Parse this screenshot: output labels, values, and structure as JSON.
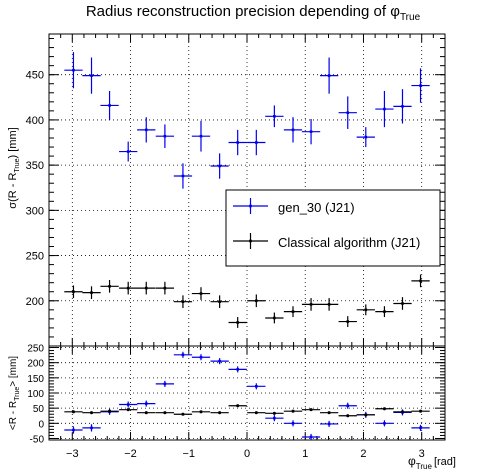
{
  "chart_data": [
    {
      "type": "scatter",
      "panel": "top",
      "title": "Radius reconstruction precision depending of",
      "title_symbol": "φ",
      "title_sub": "True",
      "ylabel": "σ(R - R",
      "ylabel_sub": "True",
      "ylabel_end": ") [mm]",
      "xlim": [
        -3.4,
        3.4
      ],
      "ylim": [
        150,
        495
      ],
      "yticks": [
        200,
        250,
        300,
        350,
        400,
        450
      ],
      "grid": true,
      "legend_position": "center-right",
      "series": [
        {
          "name": "gen_30 (J21)",
          "color": "#0000ee",
          "xerr": 0.1571,
          "x": [
            -2.98,
            -2.67,
            -2.36,
            -2.04,
            -1.73,
            -1.41,
            -1.1,
            -0.79,
            -0.47,
            -0.16,
            0.16,
            0.47,
            0.79,
            1.1,
            1.41,
            1.73,
            2.04,
            2.36,
            2.67,
            2.98
          ],
          "y": [
            455,
            449,
            416,
            365,
            389,
            382,
            338,
            382,
            349,
            375,
            375,
            404,
            389,
            387,
            449,
            408,
            381,
            412,
            415,
            438
          ],
          "yerr": [
            20,
            20,
            16,
            11,
            14,
            13,
            14,
            17,
            14,
            14,
            14,
            12,
            14,
            14,
            20,
            18,
            11,
            20,
            19,
            19
          ]
        },
        {
          "name": "Classical algorithm (J21)",
          "color": "#000000",
          "xerr": 0.1571,
          "x": [
            -2.98,
            -2.67,
            -2.36,
            -2.04,
            -1.73,
            -1.41,
            -1.1,
            -0.79,
            -0.47,
            -0.16,
            0.16,
            0.47,
            0.79,
            1.1,
            1.41,
            1.73,
            2.04,
            2.36,
            2.67,
            2.98
          ],
          "y": [
            210,
            209,
            216,
            214,
            214,
            214,
            199,
            208,
            199,
            176,
            200,
            181,
            188,
            196,
            196,
            177,
            190,
            188,
            197,
            222
          ],
          "yerr": [
            7,
            7,
            7,
            7,
            7,
            7,
            7,
            7,
            7,
            6,
            7,
            6,
            6,
            7,
            7,
            6,
            6,
            6,
            7,
            7
          ]
        }
      ]
    },
    {
      "type": "scatter",
      "panel": "bottom",
      "xlabel": "φ",
      "xlabel_sub": "True",
      "xlabel_unit": "[rad]",
      "ylabel": "<R - R",
      "ylabel_sub": "True",
      "ylabel_end": "> [mm]",
      "xlim": [
        -3.4,
        3.4
      ],
      "ylim": [
        -55,
        255
      ],
      "xticks": [
        -3,
        -2,
        -1,
        0,
        1,
        2,
        3
      ],
      "yticks": [
        -50,
        0,
        50,
        100,
        150,
        200,
        250
      ],
      "grid": true,
      "series": [
        {
          "name": "gen_30 (J21)",
          "color": "#0000ee",
          "xerr": 0.1571,
          "x": [
            -2.98,
            -2.67,
            -2.36,
            -2.04,
            -1.73,
            -1.41,
            -1.1,
            -0.79,
            -0.47,
            -0.16,
            0.16,
            0.47,
            0.79,
            1.1,
            1.41,
            1.73,
            2.04,
            2.36,
            2.67,
            2.98
          ],
          "y": [
            -22,
            -15,
            38,
            62,
            65,
            130,
            226,
            218,
            205,
            178,
            122,
            17,
            0,
            -45,
            -2,
            58,
            28,
            0,
            36,
            -15
          ],
          "yerr": [
            12,
            12,
            10,
            10,
            10,
            10,
            10,
            10,
            10,
            10,
            10,
            10,
            10,
            10,
            10,
            10,
            10,
            10,
            10,
            10
          ]
        },
        {
          "name": "Classical algorithm (J21)",
          "color": "#000000",
          "xerr": 0.1571,
          "x": [
            -2.98,
            -2.67,
            -2.36,
            -2.04,
            -1.73,
            -1.41,
            -1.1,
            -0.79,
            -0.47,
            -0.16,
            0.16,
            0.47,
            0.79,
            1.1,
            1.41,
            1.73,
            2.04,
            2.36,
            2.67,
            2.98
          ],
          "y": [
            38,
            35,
            40,
            45,
            35,
            35,
            30,
            38,
            35,
            58,
            35,
            33,
            40,
            45,
            35,
            25,
            28,
            48,
            38,
            40
          ],
          "yerr": [
            5,
            5,
            5,
            5,
            5,
            5,
            5,
            5,
            5,
            5,
            5,
            5,
            5,
            5,
            5,
            5,
            5,
            5,
            5,
            5
          ]
        }
      ]
    }
  ]
}
